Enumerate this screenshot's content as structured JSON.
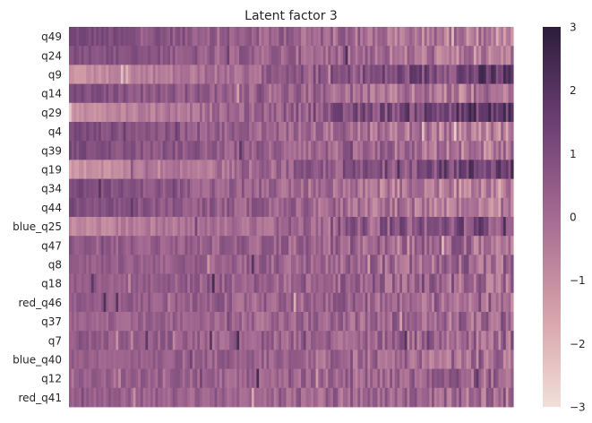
{
  "chart_data": {
    "type": "heatmap",
    "title": "Latent factor 3",
    "xlabel": "",
    "ylabel": "",
    "rows": [
      "q49",
      "q24",
      "q9",
      "q14",
      "q29",
      "q4",
      "q39",
      "q19",
      "q34",
      "q44",
      "blue_q25",
      "q47",
      "q8",
      "q18",
      "red_q46",
      "q37",
      "q7",
      "blue_q40",
      "q12",
      "red_q41"
    ],
    "row_patterns": [
      {
        "row": "q49",
        "left_value": 1.2,
        "right_value": -0.7
      },
      {
        "row": "q24",
        "left_value": 1.0,
        "right_value": -0.5
      },
      {
        "row": "q9",
        "left_value": -1.1,
        "right_value": 1.6
      },
      {
        "row": "q14",
        "left_value": 1.0,
        "right_value": -0.5
      },
      {
        "row": "q29",
        "left_value": -1.1,
        "right_value": 1.8
      },
      {
        "row": "q4",
        "left_value": 1.1,
        "right_value": -0.7
      },
      {
        "row": "q39",
        "left_value": 1.1,
        "right_value": -0.5
      },
      {
        "row": "q19",
        "left_value": -1.3,
        "right_value": 1.6
      },
      {
        "row": "q34",
        "left_value": 1.1,
        "right_value": -0.9
      },
      {
        "row": "q44",
        "left_value": 1.0,
        "right_value": -0.6
      },
      {
        "row": "blue_q25",
        "left_value": -0.9,
        "right_value": 1.1
      },
      {
        "row": "q47",
        "left_value": 0.5,
        "right_value": 0.0
      },
      {
        "row": "q8",
        "left_value": 0.5,
        "right_value": 0.0
      },
      {
        "row": "q18",
        "left_value": 0.5,
        "right_value": 0.1
      },
      {
        "row": "red_q46",
        "left_value": 0.5,
        "right_value": 0.0
      },
      {
        "row": "q37",
        "left_value": 0.3,
        "right_value": 0.0
      },
      {
        "row": "q7",
        "left_value": 0.5,
        "right_value": 0.1
      },
      {
        "row": "blue_q40",
        "left_value": 0.4,
        "right_value": 0.0
      },
      {
        "row": "q12",
        "left_value": 0.4,
        "right_value": 0.1
      },
      {
        "row": "red_q41",
        "left_value": 0.4,
        "right_value": 0.0
      }
    ],
    "colorbar": {
      "min": -3,
      "max": 3,
      "ticks": [
        3,
        2,
        1,
        0,
        -1,
        -2,
        -3
      ],
      "tick_labels": [
        "3",
        "2",
        "1",
        "0",
        "−1",
        "−2",
        "−3"
      ],
      "colors": [
        "#f2dfd8",
        "#d5a0a8",
        "#a56a92",
        "#6b3f72",
        "#2d1d3c"
      ]
    },
    "grid": false
  }
}
